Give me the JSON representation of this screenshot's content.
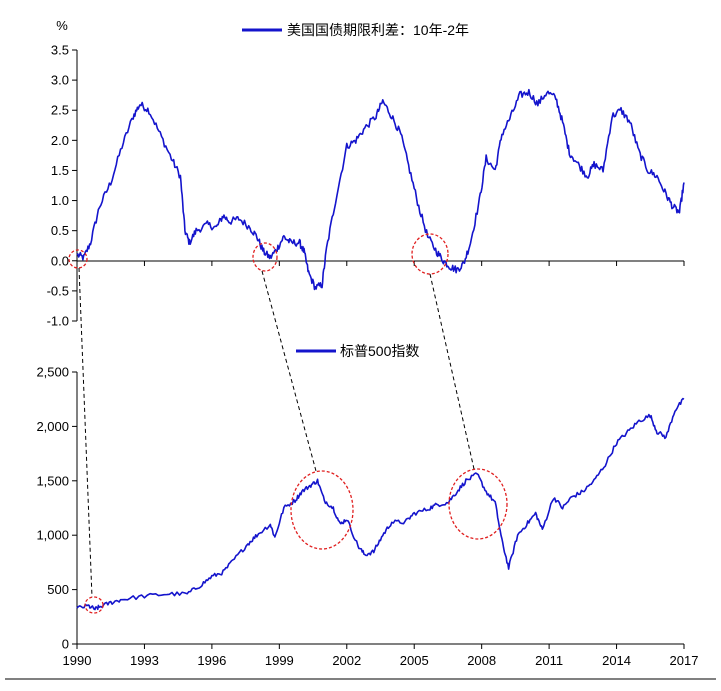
{
  "colors": {
    "series": "#1414cc",
    "highlight": "#e02020",
    "axis": "#000000",
    "connector": "#000000"
  },
  "chart_data": [
    {
      "type": "line",
      "unit_label": "%",
      "legend_position": "top-center",
      "grid": false,
      "xlim": [
        1990,
        2017
      ],
      "ylim": [
        -1.0,
        3.5
      ],
      "y_ticks": [
        "3.5",
        "3.0",
        "2.5",
        "2.0",
        "1.5",
        "1.0",
        "0.5",
        "0.0",
        "-0.5",
        "-1.0"
      ],
      "y_tick_values": [
        3.5,
        3.0,
        2.5,
        2.0,
        1.5,
        1.0,
        0.5,
        0.0,
        -0.5,
        -1.0
      ],
      "series": [
        {
          "name": "美国国债期限利差：10年-2年",
          "points": [
            [
              1990.0,
              0.1
            ],
            [
              1990.3,
              0.05
            ],
            [
              1990.6,
              0.3
            ],
            [
              1991.0,
              0.9
            ],
            [
              1991.5,
              1.3
            ],
            [
              1992.0,
              1.9
            ],
            [
              1992.5,
              2.4
            ],
            [
              1992.8,
              2.6
            ],
            [
              1993.2,
              2.5
            ],
            [
              1993.7,
              2.1
            ],
            [
              1994.2,
              1.7
            ],
            [
              1994.6,
              1.4
            ],
            [
              1994.8,
              0.5
            ],
            [
              1995.0,
              0.3
            ],
            [
              1995.3,
              0.5
            ],
            [
              1995.8,
              0.6
            ],
            [
              1996.2,
              0.55
            ],
            [
              1996.5,
              0.75
            ],
            [
              1996.8,
              0.65
            ],
            [
              1997.2,
              0.7
            ],
            [
              1997.7,
              0.55
            ],
            [
              1998.0,
              0.4
            ],
            [
              1998.3,
              0.15
            ],
            [
              1998.6,
              0.05
            ],
            [
              1998.9,
              0.2
            ],
            [
              1999.2,
              0.4
            ],
            [
              1999.5,
              0.3
            ],
            [
              1999.9,
              0.3
            ],
            [
              2000.1,
              0.15
            ],
            [
              2000.3,
              -0.2
            ],
            [
              2000.6,
              -0.45
            ],
            [
              2000.9,
              -0.4
            ],
            [
              2001.1,
              0.2
            ],
            [
              2001.5,
              1.0
            ],
            [
              2002.0,
              1.9
            ],
            [
              2002.4,
              2.0
            ],
            [
              2002.8,
              2.2
            ],
            [
              2003.3,
              2.4
            ],
            [
              2003.6,
              2.65
            ],
            [
              2004.0,
              2.4
            ],
            [
              2004.4,
              2.1
            ],
            [
              2004.8,
              1.5
            ],
            [
              2005.2,
              0.9
            ],
            [
              2005.6,
              0.4
            ],
            [
              2006.0,
              0.15
            ],
            [
              2006.3,
              0.0
            ],
            [
              2006.6,
              -0.1
            ],
            [
              2006.9,
              -0.15
            ],
            [
              2007.2,
              -0.05
            ],
            [
              2007.5,
              0.3
            ],
            [
              2007.9,
              1.0
            ],
            [
              2008.2,
              1.7
            ],
            [
              2008.6,
              1.5
            ],
            [
              2008.9,
              2.1
            ],
            [
              2009.3,
              2.4
            ],
            [
              2009.7,
              2.75
            ],
            [
              2010.1,
              2.8
            ],
            [
              2010.5,
              2.6
            ],
            [
              2010.9,
              2.8
            ],
            [
              2011.3,
              2.7
            ],
            [
              2011.6,
              2.3
            ],
            [
              2011.9,
              1.8
            ],
            [
              2012.3,
              1.6
            ],
            [
              2012.7,
              1.4
            ],
            [
              2013.0,
              1.6
            ],
            [
              2013.4,
              1.5
            ],
            [
              2013.8,
              2.4
            ],
            [
              2014.2,
              2.5
            ],
            [
              2014.6,
              2.3
            ],
            [
              2015.0,
              1.8
            ],
            [
              2015.4,
              1.5
            ],
            [
              2015.8,
              1.4
            ],
            [
              2016.2,
              1.1
            ],
            [
              2016.5,
              0.9
            ],
            [
              2016.8,
              0.8
            ],
            [
              2017.0,
              1.3
            ]
          ]
        }
      ]
    },
    {
      "type": "line",
      "unit_label": "",
      "legend_position": "top-center",
      "grid": false,
      "xlim": [
        1990,
        2017
      ],
      "ylim": [
        0,
        2500
      ],
      "x_ticks": [
        "1990",
        "1993",
        "1996",
        "1999",
        "2002",
        "2005",
        "2008",
        "2011",
        "2014",
        "2017"
      ],
      "x_tick_values": [
        1990,
        1993,
        1996,
        1999,
        2002,
        2005,
        2008,
        2011,
        2014,
        2017
      ],
      "y_ticks": [
        "2,500",
        "2,000",
        "1,500",
        "1,000",
        "500",
        "0"
      ],
      "y_tick_values": [
        2500,
        2000,
        1500,
        1000,
        500,
        0
      ],
      "series": [
        {
          "name": "标普500指数",
          "points": [
            [
              1990.0,
              330
            ],
            [
              1990.5,
              350
            ],
            [
              1990.8,
              320
            ],
            [
              1991.0,
              340
            ],
            [
              1991.5,
              380
            ],
            [
              1992.0,
              410
            ],
            [
              1993.0,
              440
            ],
            [
              1994.0,
              460
            ],
            [
              1994.9,
              460
            ],
            [
              1995.5,
              540
            ],
            [
              1996.0,
              620
            ],
            [
              1996.5,
              660
            ],
            [
              1997.0,
              780
            ],
            [
              1997.6,
              920
            ],
            [
              1998.0,
              1000
            ],
            [
              1998.6,
              1100
            ],
            [
              1998.8,
              980
            ],
            [
              1999.2,
              1250
            ],
            [
              1999.7,
              1320
            ],
            [
              2000.0,
              1400
            ],
            [
              2000.4,
              1460
            ],
            [
              2000.7,
              1500
            ],
            [
              2001.0,
              1320
            ],
            [
              2001.4,
              1250
            ],
            [
              2001.7,
              1100
            ],
            [
              2002.0,
              1150
            ],
            [
              2002.5,
              900
            ],
            [
              2002.8,
              820
            ],
            [
              2003.2,
              850
            ],
            [
              2003.6,
              1000
            ],
            [
              2004.0,
              1120
            ],
            [
              2004.6,
              1120
            ],
            [
              2005.0,
              1200
            ],
            [
              2005.6,
              1240
            ],
            [
              2006.0,
              1280
            ],
            [
              2006.5,
              1300
            ],
            [
              2006.9,
              1400
            ],
            [
              2007.3,
              1500
            ],
            [
              2007.8,
              1560
            ],
            [
              2008.2,
              1400
            ],
            [
              2008.6,
              1300
            ],
            [
              2008.9,
              950
            ],
            [
              2009.2,
              700
            ],
            [
              2009.6,
              1000
            ],
            [
              2010.0,
              1100
            ],
            [
              2010.4,
              1200
            ],
            [
              2010.7,
              1050
            ],
            [
              2011.2,
              1350
            ],
            [
              2011.6,
              1250
            ],
            [
              2012.0,
              1350
            ],
            [
              2012.5,
              1400
            ],
            [
              2013.0,
              1500
            ],
            [
              2013.5,
              1650
            ],
            [
              2014.0,
              1850
            ],
            [
              2014.5,
              1950
            ],
            [
              2015.0,
              2050
            ],
            [
              2015.5,
              2100
            ],
            [
              2015.8,
              1950
            ],
            [
              2016.2,
              1900
            ],
            [
              2016.6,
              2150
            ],
            [
              2017.0,
              2250
            ]
          ]
        }
      ]
    }
  ]
}
